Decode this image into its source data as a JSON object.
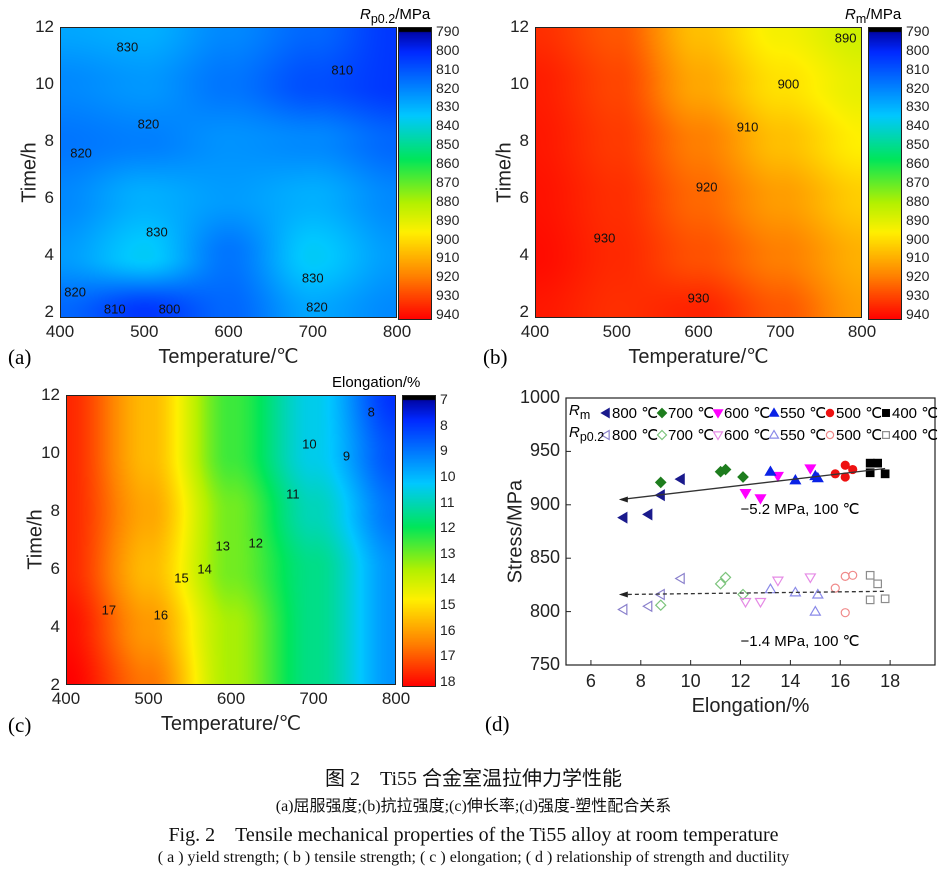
{
  "chart_data": [
    {
      "panel": "(a)",
      "type": "heatmap",
      "xlabel": "Temperature/℃",
      "ylabel": "Time/h",
      "colorbar_label": "R_p0.2/MPa",
      "colorbar_label_main": "R",
      "colorbar_label_sub": "p0.2",
      "colorbar_label_unit": "/MPa",
      "xticks": [
        400,
        500,
        600,
        700,
        800
      ],
      "yticks": [
        2,
        4,
        6,
        8,
        10,
        12
      ],
      "xlim": [
        400,
        800
      ],
      "ylim": [
        1.8,
        12
      ],
      "colorbar_ticks": [
        790,
        800,
        810,
        820,
        830,
        840,
        850,
        860,
        870,
        880,
        890,
        900,
        910,
        920,
        930,
        940
      ],
      "crange": [
        790,
        940
      ],
      "grid_x": [
        400,
        500,
        600,
        700,
        800
      ],
      "grid_y": [
        12,
        10,
        8,
        6,
        4,
        2
      ],
      "values": [
        [
          828,
          830,
          822,
          815,
          805
        ],
        [
          822,
          825,
          818,
          810,
          805
        ],
        [
          818,
          820,
          824,
          822,
          815
        ],
        [
          822,
          830,
          826,
          830,
          822
        ],
        [
          826,
          836,
          818,
          836,
          826
        ],
        [
          815,
          805,
          815,
          828,
          822
        ]
      ],
      "contour_labels": [
        {
          "text": "830",
          "x": 480,
          "y": 11.3
        },
        {
          "text": "810",
          "x": 735,
          "y": 10.5
        },
        {
          "text": "820",
          "x": 505,
          "y": 8.6
        },
        {
          "text": "820",
          "x": 425,
          "y": 7.6
        },
        {
          "text": "830",
          "x": 515,
          "y": 4.8
        },
        {
          "text": "830",
          "x": 700,
          "y": 3.2
        },
        {
          "text": "820",
          "x": 418,
          "y": 2.7
        },
        {
          "text": "810",
          "x": 465,
          "y": 2.1
        },
        {
          "text": "800",
          "x": 530,
          "y": 2.1
        },
        {
          "text": "820",
          "x": 705,
          "y": 2.2
        }
      ]
    },
    {
      "panel": "(b)",
      "type": "heatmap",
      "xlabel": "Temperature/℃",
      "ylabel": "Time/h",
      "colorbar_label": "R_m/MPa",
      "colorbar_label_main": "R",
      "colorbar_label_sub": "m",
      "colorbar_label_unit": "/MPa",
      "xticks": [
        400,
        500,
        600,
        700,
        800
      ],
      "yticks": [
        2,
        4,
        6,
        8,
        10,
        12
      ],
      "xlim": [
        400,
        800
      ],
      "ylim": [
        1.8,
        12
      ],
      "colorbar_ticks": [
        790,
        800,
        810,
        820,
        830,
        840,
        850,
        860,
        870,
        880,
        890,
        900,
        910,
        920,
        930,
        940
      ],
      "crange": [
        790,
        940
      ],
      "grid_x": [
        400,
        500,
        600,
        700,
        800
      ],
      "grid_y": [
        12,
        10,
        8,
        6,
        4,
        2
      ],
      "values": [
        [
          932,
          925,
          905,
          893,
          885
        ],
        [
          935,
          928,
          910,
          898,
          890
        ],
        [
          936,
          930,
          918,
          905,
          895
        ],
        [
          937,
          932,
          922,
          912,
          902
        ],
        [
          938,
          933,
          926,
          918,
          908
        ],
        [
          936,
          932,
          934,
          925,
          912
        ]
      ],
      "contour_labels": [
        {
          "text": "890",
          "x": 780,
          "y": 11.6
        },
        {
          "text": "900",
          "x": 710,
          "y": 10.0
        },
        {
          "text": "910",
          "x": 660,
          "y": 8.5
        },
        {
          "text": "920",
          "x": 610,
          "y": 6.4
        },
        {
          "text": "930",
          "x": 485,
          "y": 4.6
        },
        {
          "text": "930",
          "x": 600,
          "y": 2.5
        }
      ]
    },
    {
      "panel": "(c)",
      "type": "heatmap",
      "xlabel": "Temperature/℃",
      "ylabel": "Time/h",
      "colorbar_label": "Elongation/%",
      "xticks": [
        400,
        500,
        600,
        700,
        800
      ],
      "yticks": [
        2,
        4,
        6,
        8,
        10,
        12
      ],
      "xlim": [
        400,
        800
      ],
      "ylim": [
        2,
        12
      ],
      "colorbar_ticks": [
        7,
        8,
        9,
        10,
        11,
        12,
        13,
        14,
        15,
        16,
        17,
        18
      ],
      "crange": [
        7,
        18
      ],
      "grid_x": [
        400,
        500,
        600,
        700,
        800
      ],
      "grid_y": [
        12,
        10,
        8,
        6,
        4,
        2
      ],
      "values": [
        [
          17.5,
          15.5,
          12.5,
          10.5,
          8
        ],
        [
          17.5,
          15.5,
          12.5,
          10.5,
          8.5
        ],
        [
          17.5,
          15.8,
          13,
          11,
          9
        ],
        [
          17.5,
          15.5,
          13,
          11.5,
          9.5
        ],
        [
          17.8,
          16,
          13.5,
          11.5,
          9.5
        ],
        [
          18,
          16.5,
          13.5,
          11.5,
          9.5
        ]
      ],
      "contour_labels": [
        {
          "text": "8",
          "x": 770,
          "y": 11.4
        },
        {
          "text": "10",
          "x": 695,
          "y": 10.3
        },
        {
          "text": "9",
          "x": 740,
          "y": 9.9
        },
        {
          "text": "11",
          "x": 675,
          "y": 8.6
        },
        {
          "text": "13",
          "x": 590,
          "y": 6.8
        },
        {
          "text": "12",
          "x": 630,
          "y": 6.9
        },
        {
          "text": "14",
          "x": 568,
          "y": 6.0
        },
        {
          "text": "15",
          "x": 540,
          "y": 5.7
        },
        {
          "text": "17",
          "x": 452,
          "y": 4.6
        },
        {
          "text": "16",
          "x": 515,
          "y": 4.4
        }
      ]
    },
    {
      "panel": "(d)",
      "type": "scatter",
      "xlabel": "Elongation/%",
      "ylabel": "Stress/MPa",
      "xlim": [
        5,
        19.8
      ],
      "ylim": [
        750,
        1000
      ],
      "xticks": [
        6,
        8,
        10,
        12,
        14,
        16,
        18
      ],
      "yticks": [
        750,
        800,
        850,
        900,
        950,
        1000
      ],
      "legend_rows": [
        {
          "label_main": "R",
          "label_sub": "m"
        },
        {
          "label_main": "R",
          "label_sub": "p0.2"
        }
      ],
      "series": [
        {
          "name": "800 ℃",
          "group": "Rm",
          "marker": "tri-left",
          "filled": true,
          "color": "#1a1a8c",
          "points": [
            [
              7.3,
              888
            ],
            [
              8.3,
              891
            ],
            [
              8.8,
              909
            ],
            [
              9.6,
              924
            ]
          ]
        },
        {
          "name": "700 ℃",
          "group": "Rm",
          "marker": "diamond",
          "filled": true,
          "color": "#1e7d1e",
          "points": [
            [
              8.8,
              921
            ],
            [
              11.2,
              931
            ],
            [
              11.4,
              933
            ],
            [
              12.1,
              926
            ]
          ]
        },
        {
          "name": "600 ℃",
          "group": "Rm",
          "marker": "tri-down",
          "filled": true,
          "color": "#ff00ff",
          "points": [
            [
              12.2,
              911
            ],
            [
              12.8,
              906
            ],
            [
              13.5,
              927
            ],
            [
              14.8,
              934
            ]
          ]
        },
        {
          "name": "550 ℃",
          "group": "Rm",
          "marker": "tri-up",
          "filled": true,
          "color": "#0a22e6",
          "points": [
            [
              13.2,
              931
            ],
            [
              14.2,
              923
            ],
            [
              15.0,
              927
            ],
            [
              15.1,
              925
            ]
          ]
        },
        {
          "name": "500 ℃",
          "group": "Rm",
          "marker": "circle",
          "filled": true,
          "color": "#ee1111",
          "points": [
            [
              15.8,
              929
            ],
            [
              16.2,
              937
            ],
            [
              16.2,
              926
            ],
            [
              16.5,
              933
            ]
          ]
        },
        {
          "name": "400 ℃",
          "group": "Rm",
          "marker": "square",
          "filled": true,
          "color": "#000000",
          "points": [
            [
              17.2,
              939
            ],
            [
              17.5,
              939
            ],
            [
              17.2,
              930
            ],
            [
              17.8,
              929
            ]
          ]
        },
        {
          "name": "800 ℃",
          "group": "Rp0.2",
          "marker": "tri-left",
          "filled": false,
          "color": "#8a80cc",
          "points": [
            [
              7.3,
              802
            ],
            [
              8.3,
              805
            ],
            [
              8.8,
              816
            ],
            [
              9.6,
              831
            ]
          ]
        },
        {
          "name": "700 ℃",
          "group": "Rp0.2",
          "marker": "diamond",
          "filled": false,
          "color": "#7cc47c",
          "points": [
            [
              8.8,
              806
            ],
            [
              11.2,
              826
            ],
            [
              11.4,
              832
            ],
            [
              12.1,
              816
            ]
          ]
        },
        {
          "name": "600 ℃",
          "group": "Rp0.2",
          "marker": "tri-down",
          "filled": false,
          "color": "#e58ae5",
          "points": [
            [
              12.2,
              809
            ],
            [
              12.8,
              809
            ],
            [
              13.5,
              829
            ],
            [
              14.8,
              832
            ]
          ]
        },
        {
          "name": "550 ℃",
          "group": "Rp0.2",
          "marker": "tri-up",
          "filled": false,
          "color": "#8a8ae8",
          "points": [
            [
              13.2,
              821
            ],
            [
              14.2,
              818
            ],
            [
              15.1,
              816
            ],
            [
              15.0,
              800
            ]
          ]
        },
        {
          "name": "500 ℃",
          "group": "Rp0.2",
          "marker": "circle",
          "filled": false,
          "color": "#f08a8a",
          "points": [
            [
              15.8,
              822
            ],
            [
              16.2,
              833
            ],
            [
              16.5,
              834
            ],
            [
              16.2,
              799
            ]
          ]
        },
        {
          "name": "400 ℃",
          "group": "Rp0.2",
          "marker": "square",
          "filled": false,
          "color": "#8c8c8c",
          "points": [
            [
              17.2,
              834
            ],
            [
              17.5,
              826
            ],
            [
              17.2,
              811
            ],
            [
              17.8,
              812
            ]
          ]
        }
      ],
      "trend_lines": [
        {
          "group": "Rm",
          "from": [
            7.2,
            905
          ],
          "to": [
            17.8,
            934
          ],
          "style": "solid",
          "annotation": "−5.2 MPa, 100 ℃",
          "ann_at": [
            12.8,
            895
          ]
        },
        {
          "group": "Rp0.2",
          "from": [
            7.2,
            816
          ],
          "to": [
            17.8,
            819
          ],
          "style": "dashed",
          "annotation": "−1.4 MPa, 100 ℃",
          "ann_at": [
            12.8,
            772
          ]
        }
      ]
    }
  ],
  "caption": {
    "cn_title": "图 2　Ti55 合金室温拉伸力学性能",
    "cn_sub": "(a)屈服强度;(b)抗拉强度;(c)伸长率;(d)强度-塑性配合关系",
    "en_title": "Fig. 2　Tensile mechanical properties of the Ti55 alloy at room temperature",
    "en_sub": "( a ) yield strength; ( b ) tensile strength; ( c ) elongation; ( d ) relationship of strength and ductility"
  }
}
